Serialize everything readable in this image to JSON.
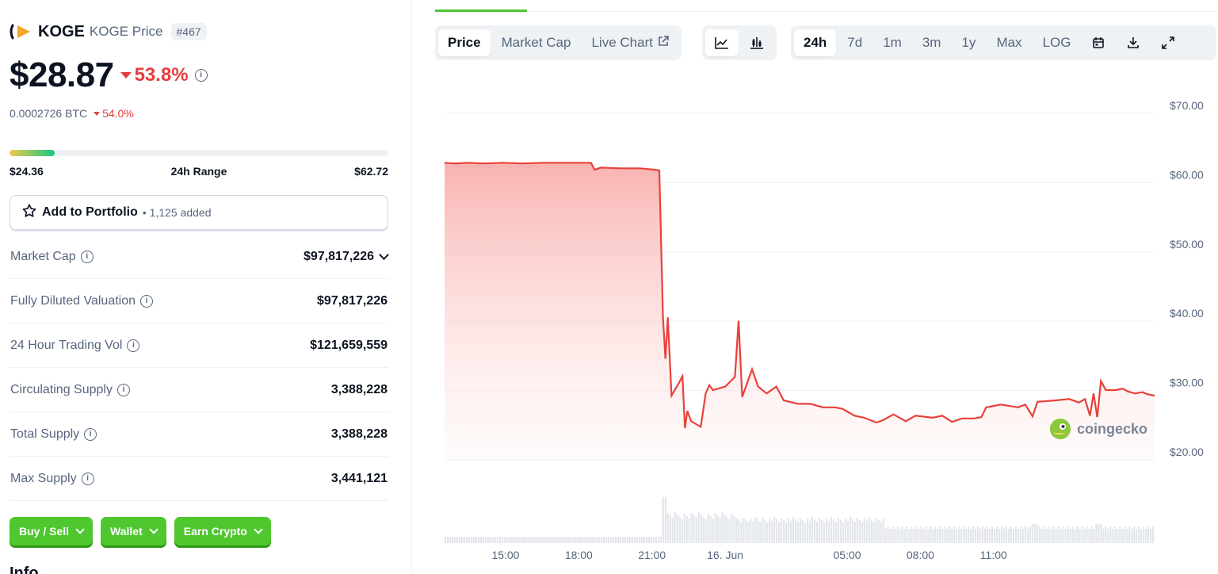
{
  "coin": {
    "name": "KOGE",
    "sub": "KOGE Price",
    "rank": "#467",
    "price": "$28.87",
    "change_24h": "53.8%",
    "btc_price": "0.0002726 BTC",
    "btc_change": "54.0%"
  },
  "range": {
    "low": "$24.36",
    "label": "24h Range",
    "high": "$62.72",
    "position_fraction": 0.12
  },
  "portfolio": {
    "label": "Add to Portfolio",
    "count": "• 1,125 added"
  },
  "stats": [
    {
      "label": "Market Cap",
      "value": "$97,817,226"
    },
    {
      "label": "Fully Diluted Valuation",
      "value": "$97,817,226"
    },
    {
      "label": "24 Hour Trading Vol",
      "value": "$121,659,559"
    },
    {
      "label": "Circulating Supply",
      "value": "3,388,228"
    },
    {
      "label": "Total Supply",
      "value": "3,388,228"
    },
    {
      "label": "Max Supply",
      "value": "3,441,121"
    }
  ],
  "actions": {
    "buy_sell": "Buy / Sell",
    "wallet": "Wallet",
    "earn": "Earn Crypto"
  },
  "info_heading": "Info",
  "chart_tabs": {
    "price": "Price",
    "market_cap": "Market Cap",
    "live_chart": "Live Chart",
    "ranges": [
      "24h",
      "7d",
      "1m",
      "3m",
      "1y",
      "Max",
      "LOG"
    ],
    "active_range": "24h"
  },
  "watermark": "coingecko",
  "colors": {
    "accent": "#4fc72f",
    "down": "#e53e3e",
    "line": "#e8413a"
  },
  "chart_data": {
    "type": "area",
    "y_ticks": [
      "$70.00",
      "$60.00",
      "$50.00",
      "$40.00",
      "$30.00",
      "$20.00"
    ],
    "x_ticks": [
      "15:00",
      "18:00",
      "21:00",
      "16. Jun",
      "05:00",
      "08:00",
      "11:00"
    ],
    "ylim": [
      20,
      70
    ],
    "x_unit": "hours since 12:30",
    "price": [
      [
        0.0,
        62.3
      ],
      [
        0.4,
        62.2
      ],
      [
        1.0,
        62.3
      ],
      [
        1.6,
        62.2
      ],
      [
        2.4,
        62.3
      ],
      [
        3.2,
        62.2
      ],
      [
        4.0,
        62.3
      ],
      [
        4.8,
        62.3
      ],
      [
        5.6,
        62.3
      ],
      [
        6.0,
        62.3
      ],
      [
        6.15,
        61.3
      ],
      [
        6.4,
        61.6
      ],
      [
        7.2,
        61.5
      ],
      [
        8.0,
        61.5
      ],
      [
        8.6,
        61.3
      ],
      [
        8.8,
        61.2
      ],
      [
        8.95,
        40.0
      ],
      [
        9.05,
        34.0
      ],
      [
        9.15,
        40.0
      ],
      [
        9.3,
        28.7
      ],
      [
        9.6,
        30.5
      ],
      [
        9.75,
        31.5
      ],
      [
        9.85,
        24.0
      ],
      [
        9.95,
        26.5
      ],
      [
        10.1,
        25.0
      ],
      [
        10.5,
        24.2
      ],
      [
        10.7,
        29.0
      ],
      [
        10.85,
        30.2
      ],
      [
        11.0,
        29.5
      ],
      [
        11.5,
        30.0
      ],
      [
        11.9,
        31.4
      ],
      [
        12.05,
        39.5
      ],
      [
        12.2,
        28.5
      ],
      [
        12.4,
        30.5
      ],
      [
        12.6,
        32.5
      ],
      [
        12.85,
        30.0
      ],
      [
        13.2,
        29.0
      ],
      [
        13.6,
        30.0
      ],
      [
        13.9,
        28.0
      ],
      [
        14.5,
        27.5
      ],
      [
        15.0,
        27.5
      ],
      [
        15.5,
        27.0
      ],
      [
        16.0,
        27.0
      ],
      [
        16.3,
        26.8
      ],
      [
        16.8,
        25.8
      ],
      [
        17.2,
        25.5
      ],
      [
        17.7,
        24.8
      ],
      [
        18.0,
        25.2
      ],
      [
        18.4,
        26.0
      ],
      [
        18.9,
        25.0
      ],
      [
        19.3,
        25.8
      ],
      [
        20.0,
        25.5
      ],
      [
        20.4,
        25.8
      ],
      [
        20.8,
        24.9
      ],
      [
        21.2,
        25.4
      ],
      [
        21.7,
        25.4
      ],
      [
        22.0,
        25.6
      ],
      [
        22.2,
        27.0
      ],
      [
        22.8,
        27.4
      ],
      [
        23.5,
        27.0
      ],
      [
        23.8,
        27.4
      ],
      [
        24.1,
        25.7
      ],
      [
        24.3,
        27.8
      ],
      [
        25.0,
        28.0
      ],
      [
        25.6,
        28.2
      ],
      [
        26.0,
        27.7
      ],
      [
        26.25,
        28.2
      ],
      [
        26.45,
        25.8
      ],
      [
        26.6,
        29.0
      ],
      [
        26.75,
        25.6
      ],
      [
        26.9,
        30.8
      ],
      [
        27.1,
        29.5
      ],
      [
        27.5,
        29.5
      ],
      [
        27.8,
        29.7
      ],
      [
        28.0,
        29.3
      ],
      [
        28.3,
        29.0
      ],
      [
        28.6,
        29.2
      ],
      [
        28.8,
        28.9
      ],
      [
        29.1,
        28.7
      ]
    ]
  }
}
